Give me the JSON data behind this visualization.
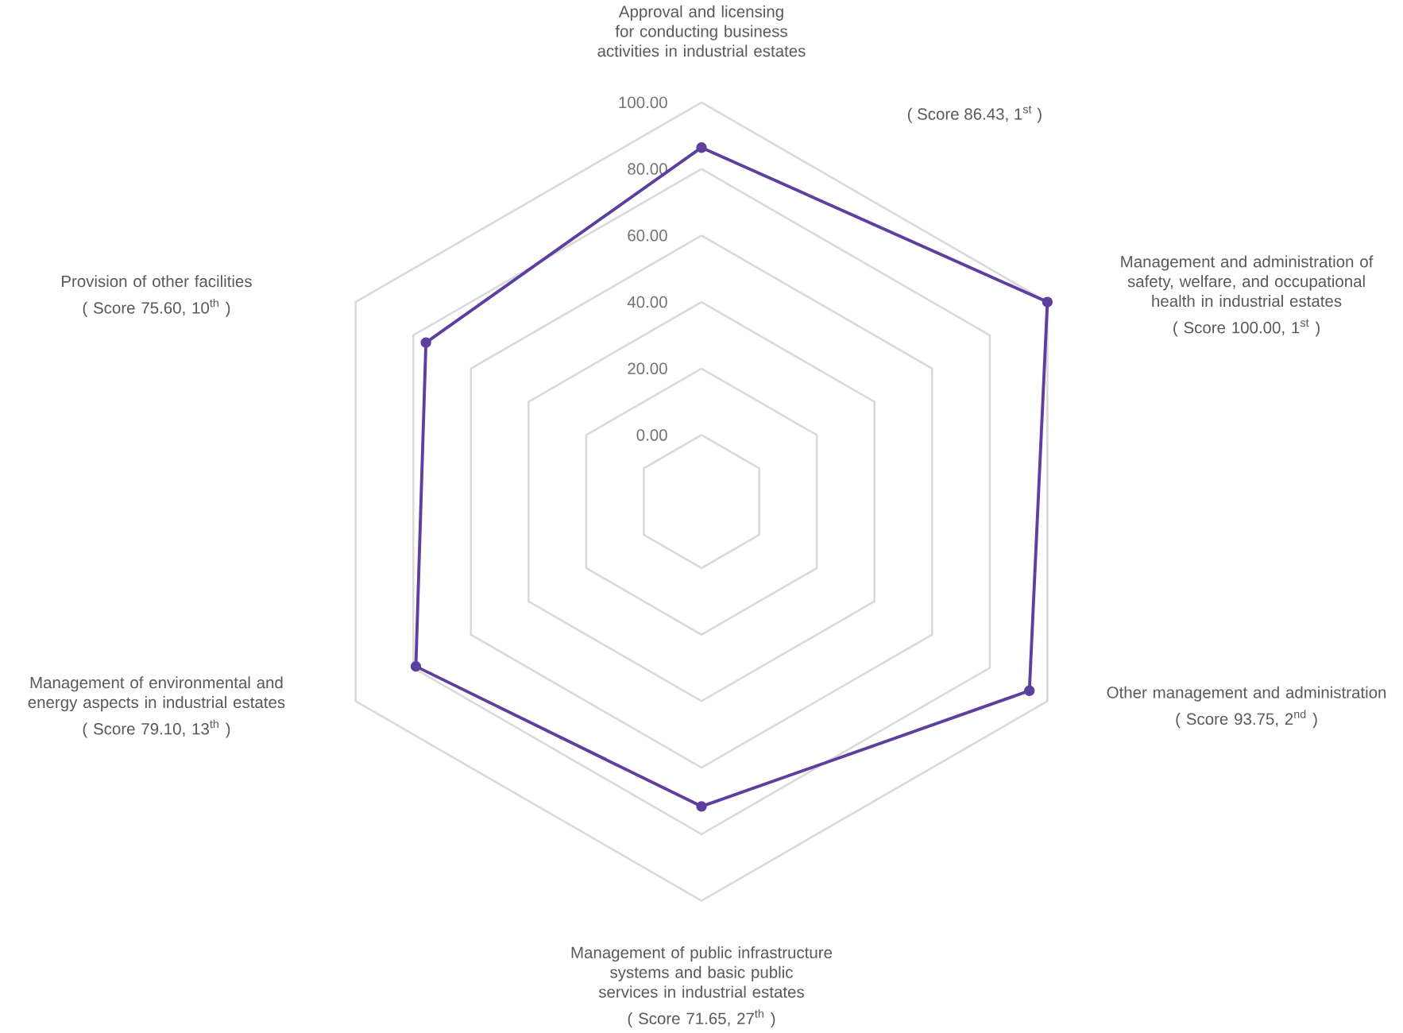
{
  "chart_data": {
    "type": "radar",
    "categories": [
      "Approval and licensing for conducting business activities in industrial estates",
      "Management and administration of safety, welfare, and occupational health in industrial estates",
      "Other management and administration",
      "Management of public infrastructure systems and basic public services in industrial estates",
      "Management of environmental and energy aspects in industrial estates",
      "Provision of other facilities"
    ],
    "series": [
      {
        "color": "#5c3f9e",
        "values": [
          86.43,
          100.0,
          93.75,
          71.65,
          79.1,
          75.6
        ]
      }
    ],
    "ylim": [
      -20,
      100
    ],
    "yticks": [
      {
        "value": 0,
        "label": "0.00"
      },
      {
        "value": 20,
        "label": "20.00"
      },
      {
        "value": 40,
        "label": "40.00"
      },
      {
        "value": 60,
        "label": "60.00"
      },
      {
        "value": 80,
        "label": "80.00"
      },
      {
        "value": 100,
        "label": "100.00"
      }
    ],
    "grid": true,
    "marker": "circle",
    "annotations": [
      "( Score 86.43, 1$^{st}$ )",
      "( Score 100.00, 1$^{st}$ )",
      "( Score 93.75, 2$^{nd}$ )",
      "( Score 71.65, 27$^{th}$ )",
      "( Score 79.10, 13$^{th}$ )",
      "( Score 75.60, 10$^{th}$ )"
    ]
  }
}
